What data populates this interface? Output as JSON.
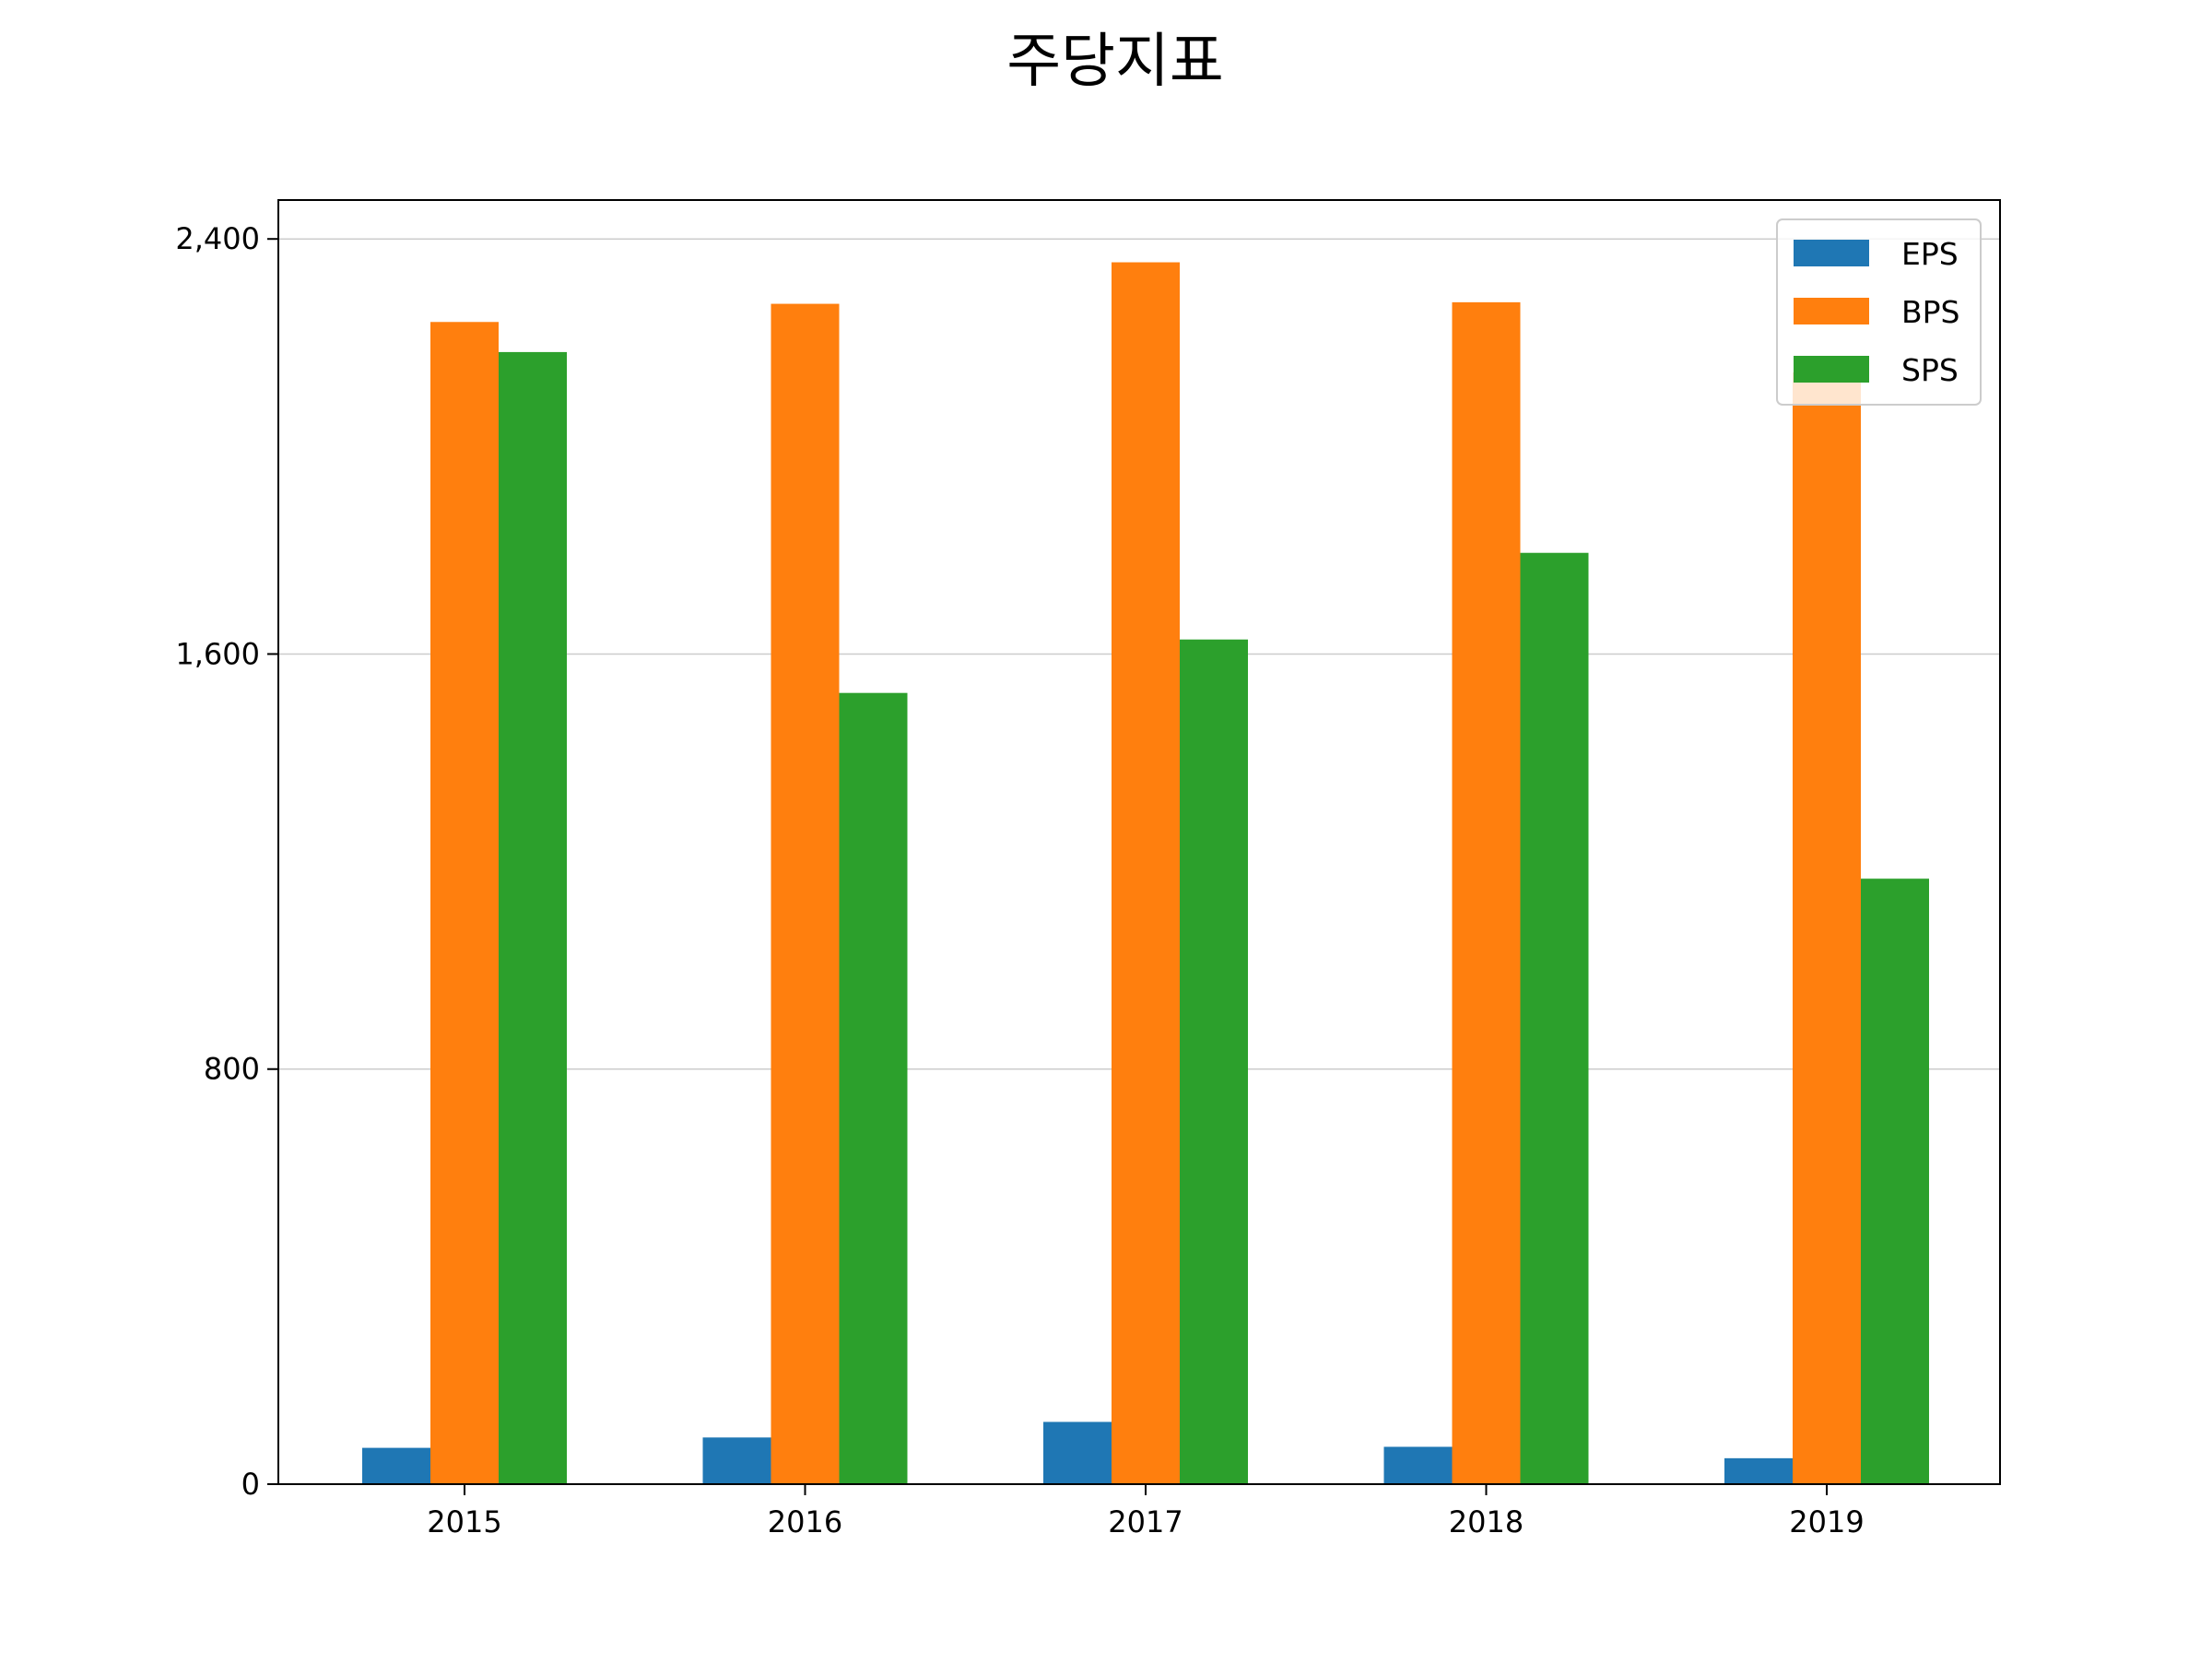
{
  "chart_data": {
    "type": "bar",
    "title": "주당지표",
    "xlabel": "",
    "ylabel": "",
    "categories": [
      "2015",
      "2016",
      "2017",
      "2018",
      "2019"
    ],
    "series": [
      {
        "name": "EPS",
        "color": "#1f77b4",
        "values": [
          70,
          90,
          120,
          72,
          50
        ]
      },
      {
        "name": "BPS",
        "color": "#ff7f0e",
        "values": [
          2240,
          2275,
          2355,
          2278,
          2143
        ]
      },
      {
        "name": "SPS",
        "color": "#2ca02c",
        "values": [
          2182,
          1525,
          1628,
          1795,
          1167
        ]
      }
    ],
    "ylim": [
      0,
      2475
    ],
    "yticks": [
      0,
      800,
      1600,
      2400
    ],
    "ytick_labels": [
      "0",
      "800",
      "1,600",
      "2,400"
    ],
    "grid": "y",
    "legend": {
      "position": "top-right",
      "entries": [
        "EPS",
        "BPS",
        "SPS"
      ]
    }
  }
}
